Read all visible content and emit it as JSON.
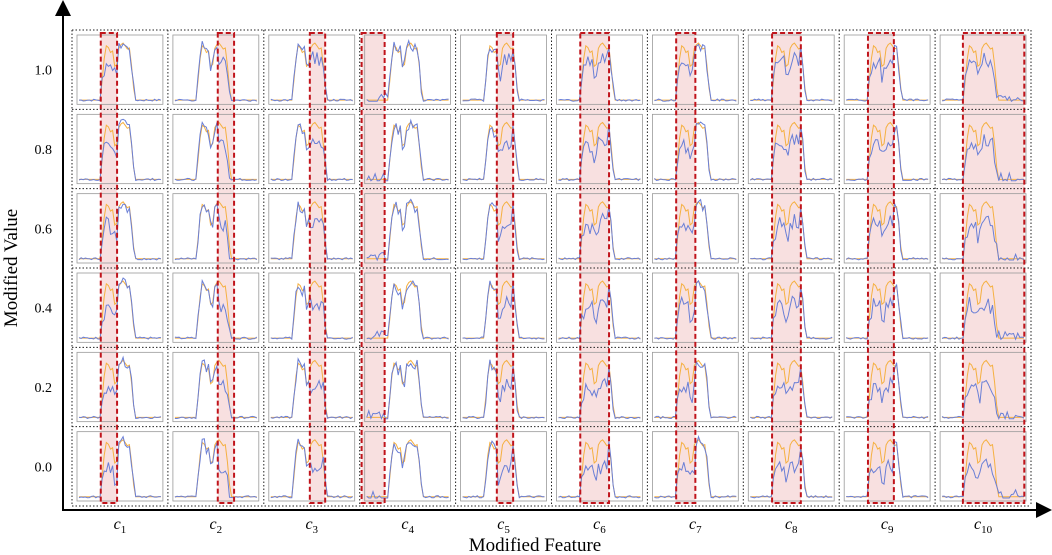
{
  "chart_data": {
    "type": "line",
    "layout": "small-multiples grid",
    "xlabel": "Modified Feature",
    "ylabel": "Modified Value",
    "columns": [
      "c_1",
      "c_2",
      "c_3",
      "c_4",
      "c_5",
      "c_6",
      "c_7",
      "c_8",
      "c_9",
      "c_10"
    ],
    "column_labels": [
      {
        "base": "c",
        "sub": "1"
      },
      {
        "base": "c",
        "sub": "2"
      },
      {
        "base": "c",
        "sub": "3"
      },
      {
        "base": "c",
        "sub": "4"
      },
      {
        "base": "c",
        "sub": "5"
      },
      {
        "base": "c",
        "sub": "6"
      },
      {
        "base": "c",
        "sub": "7"
      },
      {
        "base": "c",
        "sub": "8"
      },
      {
        "base": "c",
        "sub": "9"
      },
      {
        "base": "c",
        "sub": "10"
      }
    ],
    "rows": [
      "1.0",
      "0.8",
      "0.6",
      "0.4",
      "0.2",
      "0.0"
    ],
    "series": [
      {
        "role": "original",
        "color": "#f5b041"
      },
      {
        "role": "modified",
        "color": "#6a7fd6"
      }
    ],
    "highlight": {
      "fill": "#f6d5d5",
      "border": "#c0141b",
      "style": "dashed"
    }
  }
}
